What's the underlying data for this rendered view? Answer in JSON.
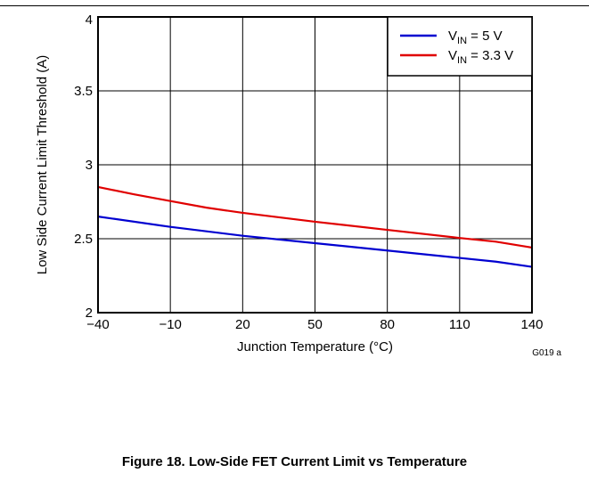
{
  "chart_data": {
    "type": "line",
    "title": "",
    "xlabel": "Junction Temperature (°C)",
    "ylabel": "Low Side Current Limit Threshold (A)",
    "xlim": [
      -40,
      140
    ],
    "ylim": [
      2,
      4
    ],
    "x_ticks": [
      "−40",
      "−10",
      "20",
      "50",
      "80",
      "110",
      "140"
    ],
    "x_tick_values": [
      -40,
      -10,
      20,
      50,
      80,
      110,
      140
    ],
    "y_ticks": [
      "2",
      "2.5",
      "3",
      "3.5",
      "4"
    ],
    "y_tick_values": [
      2,
      2.5,
      3,
      3.5,
      4
    ],
    "grid": true,
    "legend_position": "top-right",
    "series": [
      {
        "name_main": "V",
        "name_sub": "IN",
        "name_rest": " = 5 V",
        "color": "#0000d0",
        "x": [
          -40,
          -10,
          20,
          50,
          80,
          110,
          125,
          140
        ],
        "y": [
          2.65,
          2.58,
          2.52,
          2.47,
          2.42,
          2.37,
          2.345,
          2.31
        ]
      },
      {
        "name_main": "V",
        "name_sub": "IN",
        "name_rest": " = 3.3 V",
        "color": "#e00000",
        "x": [
          -40,
          -25,
          -10,
          5,
          20,
          50,
          80,
          110,
          125,
          140
        ],
        "y": [
          2.85,
          2.8,
          2.755,
          2.71,
          2.675,
          2.615,
          2.56,
          2.505,
          2.48,
          2.44
        ]
      }
    ],
    "annotation": "G019 a"
  },
  "caption": "Figure 18. Low-Side FET Current Limit vs Temperature"
}
